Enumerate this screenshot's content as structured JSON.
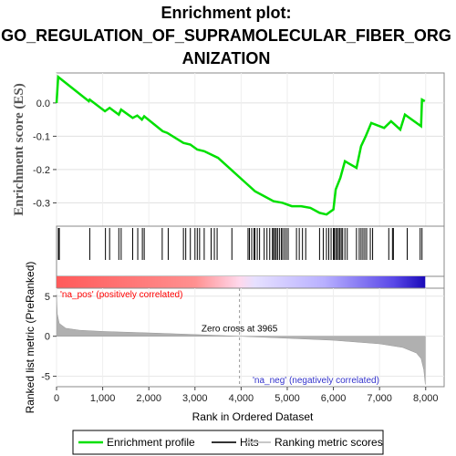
{
  "chart_data": {
    "type": "line",
    "title_lines": [
      "Enrichment plot:",
      "GO_REGULATION_OF_SUPRAMOLECULAR_FIBER_ORG",
      "ANIZATION"
    ],
    "es_ylabel": "Enrichment score (ES)",
    "rank_ylabel": "Ranked list metric (PreRanked)",
    "xlabel": "Rank in Ordered Dataset",
    "xlim": [
      0,
      8400
    ],
    "es_ylim": [
      -0.37,
      0.09
    ],
    "rank_ylim": [
      -6.3,
      6.0
    ],
    "x_ticks": [
      "0",
      "1,000",
      "2,000",
      "3,000",
      "4,000",
      "5,000",
      "6,000",
      "7,000",
      "8,000"
    ],
    "x_tick_values": [
      0,
      1000,
      2000,
      3000,
      4000,
      5000,
      6000,
      7000,
      8000
    ],
    "es_ticks": [
      "0.0",
      "-0.1",
      "-0.2",
      "-0.3"
    ],
    "es_tick_values": [
      0.0,
      -0.1,
      -0.2,
      -0.3
    ],
    "rank_ticks": [
      "5",
      "0",
      "-5"
    ],
    "rank_tick_values": [
      5,
      0,
      -5
    ],
    "zero_cross_label": "Zero cross at 3965",
    "zero_cross": 3965,
    "pos_label": "'na_pos' (positively correlated)",
    "neg_label": "'na_neg' (negatively correlated)",
    "colors": {
      "es_line": "#00e000",
      "pos_text": "#ff0000",
      "neg_text": "#3333cc",
      "metric_fill": "#b0b0b0",
      "hit": "#000000"
    },
    "legend": [
      {
        "label": "Enrichment profile",
        "color": "#00e000"
      },
      {
        "label": "Hits",
        "color": "#333333"
      },
      {
        "label": "Ranking metric scores",
        "color": "#c8c8c8"
      }
    ],
    "es_profile": [
      [
        0,
        0.0
      ],
      [
        35,
        0.078
      ],
      [
        700,
        0.005
      ],
      [
        720,
        0.01
      ],
      [
        1050,
        -0.025
      ],
      [
        1150,
        -0.015
      ],
      [
        1350,
        -0.035
      ],
      [
        1400,
        -0.02
      ],
      [
        1650,
        -0.045
      ],
      [
        1750,
        -0.038
      ],
      [
        1850,
        -0.05
      ],
      [
        1900,
        -0.04
      ],
      [
        2300,
        -0.085
      ],
      [
        2400,
        -0.09
      ],
      [
        2750,
        -0.12
      ],
      [
        2900,
        -0.125
      ],
      [
        3050,
        -0.14
      ],
      [
        3200,
        -0.145
      ],
      [
        3500,
        -0.165
      ],
      [
        4100,
        -0.24
      ],
      [
        4300,
        -0.265
      ],
      [
        4500,
        -0.28
      ],
      [
        4700,
        -0.295
      ],
      [
        4900,
        -0.3
      ],
      [
        5100,
        -0.31
      ],
      [
        5300,
        -0.31
      ],
      [
        5500,
        -0.315
      ],
      [
        5700,
        -0.33
      ],
      [
        5850,
        -0.335
      ],
      [
        6000,
        -0.32
      ],
      [
        6050,
        -0.26
      ],
      [
        6150,
        -0.225
      ],
      [
        6250,
        -0.175
      ],
      [
        6500,
        -0.195
      ],
      [
        6600,
        -0.13
      ],
      [
        6700,
        -0.1
      ],
      [
        6820,
        -0.06
      ],
      [
        7100,
        -0.075
      ],
      [
        7250,
        -0.055
      ],
      [
        7450,
        -0.08
      ],
      [
        7550,
        -0.035
      ],
      [
        7900,
        -0.07
      ],
      [
        7920,
        0.01
      ],
      [
        7980,
        0.005
      ]
    ],
    "hits": [
      40,
      60,
      720,
      1060,
      1150,
      1350,
      1400,
      1650,
      1760,
      1860,
      1900,
      2290,
      2420,
      2750,
      2800,
      2900,
      3000,
      3050,
      3100,
      3200,
      3350,
      3420,
      3480,
      3800,
      4150,
      4180,
      4230,
      4280,
      4300,
      4350,
      4400,
      4500,
      4560,
      4620,
      4680,
      4700,
      4730,
      4760,
      4790,
      4830,
      4870,
      4900,
      4940,
      4980,
      5020,
      5200,
      5260,
      5330,
      5400,
      5700,
      5780,
      5850,
      5900,
      5950,
      6000,
      6020,
      6050,
      6080,
      6110,
      6140,
      6170,
      6200,
      6250,
      6300,
      6500,
      6560,
      6600,
      6640,
      6680,
      6720,
      6800,
      6850,
      7200,
      7280,
      7300,
      7600,
      7880,
      7920
    ],
    "metric_profile": [
      [
        0,
        5.2
      ],
      [
        15,
        2.8
      ],
      [
        60,
        1.6
      ],
      [
        200,
        1.0
      ],
      [
        500,
        0.75
      ],
      [
        1000,
        0.6
      ],
      [
        2000,
        0.42
      ],
      [
        3000,
        0.22
      ],
      [
        3965,
        0.0
      ],
      [
        5000,
        -0.25
      ],
      [
        6000,
        -0.5
      ],
      [
        7000,
        -0.95
      ],
      [
        7500,
        -1.4
      ],
      [
        7800,
        -2.1
      ],
      [
        7900,
        -2.8
      ],
      [
        7960,
        -4.2
      ],
      [
        7990,
        -6.0
      ]
    ],
    "color_bar_stops": [
      {
        "pos": 0,
        "color": "#ff5a5a"
      },
      {
        "pos": 3000,
        "color": "#ff9090"
      },
      {
        "pos": 3965,
        "color": "#ffd8ec"
      },
      {
        "pos": 4300,
        "color": "#e6e0ff"
      },
      {
        "pos": 5800,
        "color": "#b8b0ff"
      },
      {
        "pos": 7300,
        "color": "#5a48e8"
      },
      {
        "pos": 7990,
        "color": "#1a0ab8"
      }
    ]
  }
}
